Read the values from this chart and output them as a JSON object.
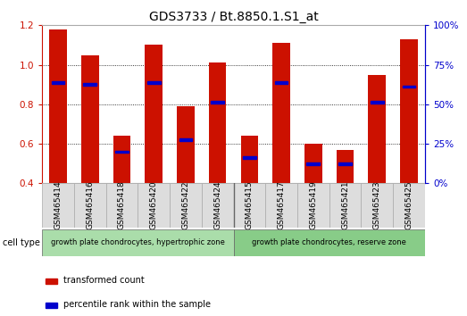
{
  "title": "GDS3733 / Bt.8850.1.S1_at",
  "samples": [
    "GSM465414",
    "GSM465416",
    "GSM465418",
    "GSM465420",
    "GSM465422",
    "GSM465424",
    "GSM465415",
    "GSM465417",
    "GSM465419",
    "GSM465421",
    "GSM465423",
    "GSM465425"
  ],
  "bar_values": [
    1.18,
    1.05,
    0.64,
    1.1,
    0.79,
    1.01,
    0.64,
    1.11,
    0.6,
    0.57,
    0.95,
    1.13
  ],
  "blue_values": [
    0.91,
    0.9,
    0.56,
    0.91,
    0.62,
    0.81,
    0.53,
    0.91,
    0.5,
    0.5,
    0.81,
    0.89
  ],
  "ymin": 0.4,
  "ymax": 1.2,
  "yticks": [
    0.4,
    0.6,
    0.8,
    1.0,
    1.2
  ],
  "right_yticks": [
    0,
    25,
    50,
    75,
    100
  ],
  "group1_label": "growth plate chondrocytes, hypertrophic zone",
  "group2_label": "growth plate chondrocytes, reserve zone",
  "group1_indices": [
    0,
    1,
    2,
    3,
    4,
    5
  ],
  "group2_indices": [
    6,
    7,
    8,
    9,
    10,
    11
  ],
  "bar_color": "#cc1100",
  "blue_color": "#0000cc",
  "group1_bg": "#aaddaa",
  "group2_bg": "#88cc88",
  "cell_type_label": "cell type",
  "legend1": "transformed count",
  "legend2": "percentile rank within the sample",
  "bar_width": 0.55,
  "tick_label_fontsize": 6.5,
  "title_fontsize": 10,
  "axis_label_fontsize": 7.5
}
